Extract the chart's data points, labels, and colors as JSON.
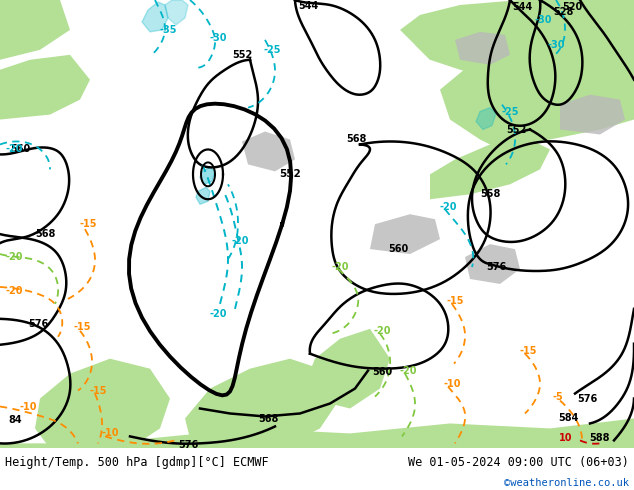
{
  "title_left": "Height/Temp. 500 hPa [gdmp][°C] ECMWF",
  "title_right": "We 01-05-2024 09:00 UTC (06+03)",
  "credit": "©weatheronline.co.uk",
  "bg_map_color": "#d0d0d0",
  "land_green_color": "#b4e096",
  "sea_color": "#d8d8d8",
  "white_area_color": "#eeeeee",
  "height_contour_color": "#000000",
  "temp_cyan_color": "#00b4c8",
  "temp_orange_color": "#ff8c00",
  "temp_green_color": "#80c840",
  "temp_red_color": "#cc0000",
  "title_font_size": 8.5,
  "credit_font_size": 7.5,
  "credit_color": "#0055bb",
  "bottom_bar_color": "#ffffff"
}
